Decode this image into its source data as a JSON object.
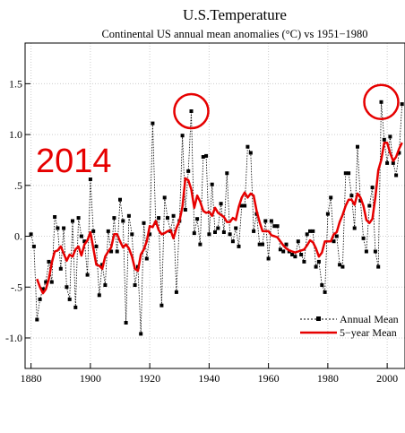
{
  "chart_data": {
    "type": "line",
    "title": "U.S.Temperature",
    "subtitle": "Continental US annual mean anomalies (°C) vs 1951−1980",
    "annotation": "2014",
    "xlim": [
      1878,
      2006
    ],
    "ylim": [
      -1.3,
      1.9
    ],
    "x_ticks": [
      1880,
      1900,
      1920,
      1940,
      1960,
      1980,
      2000
    ],
    "x_tick_labels": [
      "1880",
      "1900",
      "1920",
      "1940",
      "1960",
      "1980",
      "2000"
    ],
    "y_ticks": [
      1.5,
      1.0,
      0.5,
      0.0,
      -0.5,
      -1.0
    ],
    "y_tick_labels": [
      "1.5",
      "1.0",
      ".5",
      "0.",
      "-.5",
      "-1.0"
    ],
    "grid": true,
    "legend_position": "lower-right",
    "highlighted_years": [
      1934,
      1998
    ],
    "colors": {
      "annual": "#000000",
      "five_year": "#e60000",
      "annotation": "#e60000",
      "grid": "#cccccc"
    },
    "series": [
      {
        "name": "Annual Mean",
        "style": "dotted-with-square-markers",
        "x": [
          1880,
          1881,
          1882,
          1883,
          1884,
          1885,
          1886,
          1887,
          1888,
          1889,
          1890,
          1891,
          1892,
          1893,
          1894,
          1895,
          1896,
          1897,
          1898,
          1899,
          1900,
          1901,
          1902,
          1903,
          1904,
          1905,
          1906,
          1907,
          1908,
          1909,
          1910,
          1911,
          1912,
          1913,
          1914,
          1915,
          1916,
          1917,
          1918,
          1919,
          1920,
          1921,
          1922,
          1923,
          1924,
          1925,
          1926,
          1927,
          1928,
          1929,
          1930,
          1931,
          1932,
          1933,
          1934,
          1935,
          1936,
          1937,
          1938,
          1939,
          1940,
          1941,
          1942,
          1943,
          1944,
          1945,
          1946,
          1947,
          1948,
          1949,
          1950,
          1951,
          1952,
          1953,
          1954,
          1955,
          1956,
          1957,
          1958,
          1959,
          1960,
          1961,
          1962,
          1963,
          1964,
          1965,
          1966,
          1967,
          1968,
          1969,
          1970,
          1971,
          1972,
          1973,
          1974,
          1975,
          1976,
          1977,
          1978,
          1979,
          1980,
          1981,
          1982,
          1983,
          1984,
          1985,
          1986,
          1987,
          1988,
          1989,
          1990,
          1991,
          1992,
          1993,
          1994,
          1995,
          1996,
          1997,
          1998,
          1999,
          2000,
          2001,
          2002,
          2003,
          2004,
          2005
        ],
        "values": [
          0.02,
          -0.1,
          -0.82,
          -0.62,
          -0.52,
          -0.45,
          -0.25,
          -0.45,
          0.19,
          0.08,
          -0.32,
          0.08,
          -0.5,
          -0.62,
          0.15,
          -0.7,
          0.18,
          0.0,
          -0.05,
          -0.38,
          0.56,
          0.05,
          -0.1,
          -0.58,
          -0.28,
          -0.48,
          0.05,
          -0.15,
          0.18,
          -0.15,
          0.36,
          0.15,
          -0.85,
          0.2,
          0.02,
          -0.48,
          -0.3,
          -0.96,
          0.13,
          -0.22,
          0.02,
          1.11,
          0.13,
          0.18,
          -0.68,
          0.38,
          0.18,
          0.05,
          0.2,
          -0.55,
          0.15,
          0.99,
          0.26,
          0.64,
          1.23,
          0.03,
          0.17,
          -0.08,
          0.78,
          0.79,
          0.02,
          0.51,
          0.04,
          0.08,
          0.32,
          0.04,
          0.62,
          0.02,
          -0.05,
          0.08,
          -0.1,
          0.3,
          0.3,
          0.88,
          0.82,
          0.05,
          0.22,
          -0.08,
          -0.08,
          0.15,
          -0.22,
          0.15,
          0.1,
          0.1,
          -0.13,
          -0.15,
          -0.08,
          -0.15,
          -0.18,
          -0.2,
          -0.05,
          -0.18,
          -0.25,
          0.02,
          0.05,
          0.05,
          -0.3,
          -0.25,
          -0.48,
          -0.55,
          0.22,
          0.38,
          -0.05,
          0.0,
          -0.28,
          -0.3,
          0.62,
          0.62,
          0.4,
          0.08,
          0.88,
          0.35,
          -0.02,
          -0.15,
          0.3,
          0.48,
          -0.15,
          -0.3,
          1.32,
          0.95,
          0.72,
          0.98,
          0.72,
          0.6,
          0.82,
          1.3
        ]
      },
      {
        "name": "5−year Mean",
        "style": "solid-red",
        "x": [
          1882,
          1883,
          1884,
          1885,
          1886,
          1887,
          1888,
          1889,
          1890,
          1891,
          1892,
          1893,
          1894,
          1895,
          1896,
          1897,
          1898,
          1899,
          1900,
          1901,
          1902,
          1903,
          1904,
          1905,
          1906,
          1907,
          1908,
          1909,
          1910,
          1911,
          1912,
          1913,
          1914,
          1915,
          1916,
          1917,
          1918,
          1919,
          1920,
          1921,
          1922,
          1923,
          1924,
          1925,
          1926,
          1927,
          1928,
          1929,
          1930,
          1931,
          1932,
          1933,
          1934,
          1935,
          1936,
          1937,
          1938,
          1939,
          1940,
          1941,
          1942,
          1943,
          1944,
          1945,
          1946,
          1947,
          1948,
          1949,
          1950,
          1951,
          1952,
          1953,
          1954,
          1955,
          1956,
          1957,
          1958,
          1959,
          1960,
          1961,
          1962,
          1963,
          1964,
          1965,
          1966,
          1967,
          1968,
          1969,
          1970,
          1971,
          1972,
          1973,
          1974,
          1975,
          1976,
          1977,
          1978,
          1979,
          1980,
          1981,
          1982,
          1983,
          1984,
          1985,
          1986,
          1987,
          1988,
          1989,
          1990,
          1991,
          1992,
          1993,
          1994,
          1995,
          1996,
          1997,
          1998,
          1999,
          2000,
          2001,
          2002,
          2003,
          2004,
          2005
        ],
        "values": [
          -0.42,
          -0.5,
          -0.56,
          -0.52,
          -0.42,
          -0.26,
          -0.15,
          -0.14,
          -0.1,
          -0.17,
          -0.24,
          -0.18,
          -0.2,
          -0.13,
          -0.1,
          -0.19,
          -0.08,
          -0.04,
          0.04,
          -0.12,
          -0.28,
          -0.29,
          -0.32,
          -0.2,
          -0.15,
          -0.11,
          0.02,
          0.02,
          -0.05,
          -0.11,
          -0.08,
          -0.12,
          -0.2,
          -0.32,
          -0.34,
          -0.18,
          -0.13,
          -0.05,
          0.1,
          0.09,
          0.15,
          0.06,
          0.02,
          0.03,
          0.05,
          0.06,
          -0.02,
          0.08,
          0.15,
          0.29,
          0.57,
          0.55,
          0.46,
          0.28,
          0.4,
          0.34,
          0.25,
          0.23,
          0.24,
          0.2,
          0.28,
          0.23,
          0.21,
          0.19,
          0.14,
          0.14,
          0.18,
          0.16,
          0.29,
          0.38,
          0.43,
          0.38,
          0.42,
          0.4,
          0.25,
          0.14,
          0.05,
          0.05,
          0.05,
          0.01,
          0.0,
          -0.01,
          -0.05,
          -0.09,
          -0.12,
          -0.14,
          -0.15,
          -0.16,
          -0.15,
          -0.14,
          -0.13,
          -0.09,
          -0.04,
          -0.06,
          -0.12,
          -0.2,
          -0.16,
          -0.05,
          -0.05,
          -0.05,
          0.02,
          0.04,
          0.14,
          0.21,
          0.3,
          0.36,
          0.36,
          0.31,
          0.42,
          0.38,
          0.3,
          0.16,
          0.13,
          0.17,
          0.38,
          0.65,
          0.75,
          0.92,
          0.92,
          0.82,
          0.74,
          0.78,
          0.86,
          0.92
        ]
      }
    ]
  }
}
